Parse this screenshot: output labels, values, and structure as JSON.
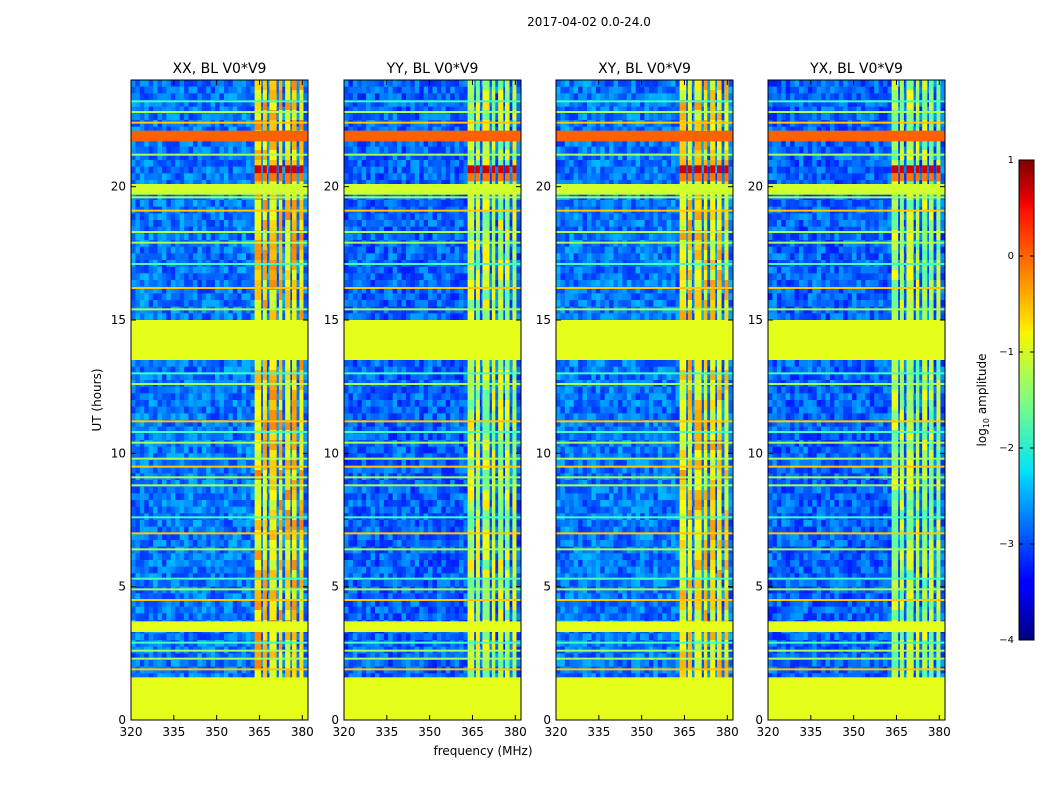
{
  "figure_title": "2017-04-02 0.0-24.0",
  "xlabel": "frequency (MHz)",
  "ylabel": "UT (hours)",
  "colorbar": {
    "label": "log10 amplitude",
    "label_base": "log",
    "label_sub": "10",
    "label_rest": " amplitude",
    "ticks": [
      1,
      0,
      -1,
      -2,
      -3,
      -4
    ],
    "tick_labels": [
      "1",
      "0",
      "−1",
      "−2",
      "−3",
      "−4"
    ],
    "range": [
      -4,
      1
    ],
    "colormap": "jet"
  },
  "chart_data": [
    {
      "type": "heatmap",
      "title": "XX, BL V0*V9",
      "xlim": [
        320,
        382
      ],
      "ylim": [
        0,
        24
      ],
      "xticks": [
        320,
        335,
        350,
        365,
        380
      ],
      "yticks": [
        0,
        5,
        10,
        15,
        20
      ],
      "rfi_band_mhz": [
        363,
        380
      ],
      "flagged_ut_ranges": [
        [
          0,
          1.6
        ],
        [
          3.3,
          3.7
        ],
        [
          13.5,
          15.0
        ]
      ],
      "burst_ut_range": [
        20.2,
        20.8
      ],
      "band_level": -0.7,
      "background_level": -2.8
    },
    {
      "type": "heatmap",
      "title": "YY, BL V0*V9",
      "xlim": [
        320,
        382
      ],
      "ylim": [
        0,
        24
      ],
      "xticks": [
        320,
        335,
        350,
        365,
        380
      ],
      "yticks": [
        0,
        5,
        10,
        15,
        20
      ],
      "rfi_band_mhz": [
        363,
        380
      ],
      "flagged_ut_ranges": [
        [
          0,
          1.6
        ],
        [
          3.3,
          3.7
        ],
        [
          13.5,
          15.0
        ]
      ],
      "burst_ut_range": [
        20.2,
        20.8
      ],
      "band_level": -1.2,
      "background_level": -2.9
    },
    {
      "type": "heatmap",
      "title": "XY, BL V0*V9",
      "xlim": [
        320,
        382
      ],
      "ylim": [
        0,
        24
      ],
      "xticks": [
        320,
        335,
        350,
        365,
        380
      ],
      "yticks": [
        0,
        5,
        10,
        15,
        20
      ],
      "rfi_band_mhz": [
        363,
        380
      ],
      "flagged_ut_ranges": [
        [
          0,
          1.6
        ],
        [
          3.3,
          3.7
        ],
        [
          13.5,
          15.0
        ]
      ],
      "burst_ut_range": [
        20.2,
        20.8
      ],
      "band_level": -0.8,
      "background_level": -2.8
    },
    {
      "type": "heatmap",
      "title": "YX, BL V0*V9",
      "xlim": [
        320,
        382
      ],
      "ylim": [
        0,
        24
      ],
      "xticks": [
        320,
        335,
        350,
        365,
        380
      ],
      "yticks": [
        0,
        5,
        10,
        15,
        20
      ],
      "rfi_band_mhz": [
        363,
        380
      ],
      "flagged_ut_ranges": [
        [
          0,
          1.6
        ],
        [
          3.3,
          3.7
        ],
        [
          13.5,
          15.0
        ]
      ],
      "burst_ut_range": [
        20.2,
        20.8
      ],
      "band_level": -1.3,
      "background_level": -2.9
    }
  ]
}
